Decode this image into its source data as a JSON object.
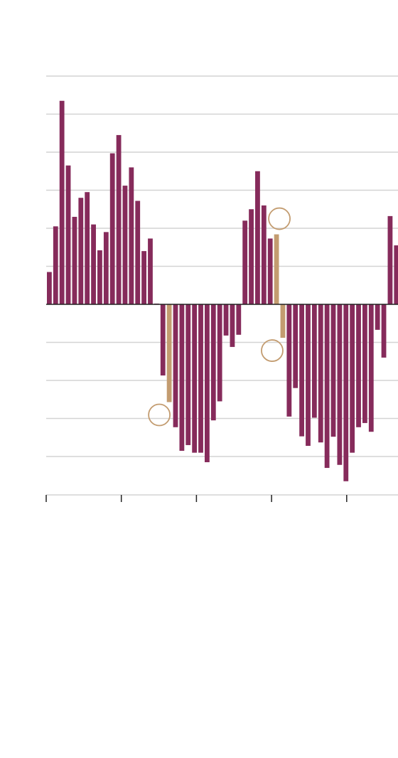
{
  "chart_data": {
    "type": "bar",
    "title": "",
    "xlabel": "",
    "ylabel": "",
    "ylim": [
      -5.0,
      6.0
    ],
    "yticks": [
      -4,
      -3,
      -2,
      -1,
      0,
      1,
      2,
      3,
      4,
      5,
      6
    ],
    "grid": true,
    "x_tick_count": 5,
    "values": [
      0.85,
      2.05,
      5.35,
      3.65,
      2.3,
      2.8,
      2.95,
      2.1,
      1.42,
      1.9,
      3.97,
      4.45,
      3.12,
      3.6,
      2.72,
      1.4,
      1.73,
      0.02,
      -1.87,
      -2.57,
      -3.23,
      -3.85,
      -3.7,
      -3.9,
      -3.9,
      -4.15,
      -3.05,
      -2.55,
      -0.82,
      -1.12,
      -0.8,
      2.2,
      2.5,
      3.5,
      2.6,
      1.73,
      1.84,
      -0.88,
      -2.95,
      -2.2,
      -3.47,
      -3.72,
      -2.98,
      -3.63,
      -4.3,
      -3.48,
      -4.22,
      -4.65,
      -3.9,
      -3.23,
      -3.12,
      -3.35,
      -0.67,
      -1.4,
      2.32,
      1.55
    ],
    "highlighted_indices": [
      19,
      36,
      37
    ],
    "annotated_indices": [
      19,
      36,
      37
    ],
    "colors": {
      "bar": "#862b5b",
      "highlight": "#c39c70",
      "grid": "#d4d4d4",
      "axis": "#222222",
      "marker": "#c39c70"
    }
  }
}
